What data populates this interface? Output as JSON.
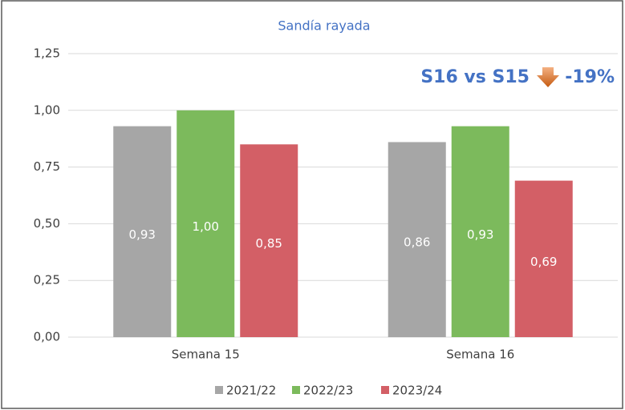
{
  "chart_data": {
    "type": "bar",
    "title": "Sandía rayada",
    "categories": [
      "Semana 15",
      "Semana 16"
    ],
    "series": [
      {
        "name": "2021/22",
        "color": "#a6a6a6",
        "values": [
          0.93,
          0.86
        ],
        "value_labels": [
          "0,93",
          "0,86"
        ]
      },
      {
        "name": "2022/23",
        "color": "#7cba5c",
        "values": [
          1.0,
          0.93
        ],
        "value_labels": [
          "1,00",
          "0,93"
        ]
      },
      {
        "name": "2023/24",
        "color": "#d35f66",
        "values": [
          0.85,
          0.69
        ],
        "value_labels": [
          "0,85",
          "0,69"
        ]
      }
    ],
    "ylim": [
      0,
      1.25
    ],
    "yticks": [
      {
        "value": 0,
        "label": "0,00"
      },
      {
        "value": 0.25,
        "label": "0,25"
      },
      {
        "value": 0.5,
        "label": "0,50"
      },
      {
        "value": 0.75,
        "label": "0,75"
      },
      {
        "value": 1,
        "label": "1,00"
      },
      {
        "value": 1.25,
        "label": "1,25"
      }
    ],
    "grid": true,
    "legend": "bottom",
    "annotation": {
      "text": "S16 vs S15",
      "change": "-19%"
    }
  }
}
